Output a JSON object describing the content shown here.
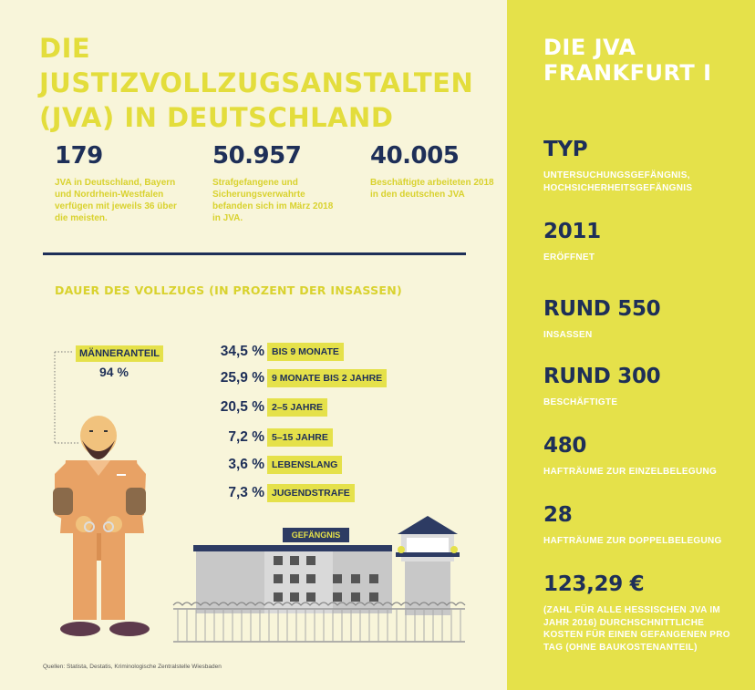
{
  "title": "DIE JUSTIZVOLLZUGSANSTALTEN (JVA) IN DEUTSCHLAND",
  "stats": [
    {
      "value": "179",
      "desc": "JVA in Deutschland, Bayern und Nordrhein-Westfalen verfügen mit jeweils 36 über die meisten."
    },
    {
      "value": "50.957",
      "desc": "Strafgefangene und Sicherungsverwahrte befanden sich im März 2018 in JVA."
    },
    {
      "value": "40.005",
      "desc": "Beschäftigte arbeiteten 2018 in den deutschen JVA"
    }
  ],
  "duration_title": "DAUER DES VOLLZUGS (IN PROZENT DER INSASSEN)",
  "men": {
    "label": "MÄNNERANTEIL",
    "value": "94 %"
  },
  "durations": [
    {
      "pct": "34,5 %",
      "label": "BIS 9 MONATE"
    },
    {
      "pct": "25,9 %",
      "label": "9 MONATE BIS 2 JAHRE"
    },
    {
      "pct": "20,5 %",
      "label": "2–5 JAHRE"
    },
    {
      "pct": "7,2 %",
      "label": "5–15 JAHRE"
    },
    {
      "pct": "3,6 %",
      "label": "LEBENSLANG"
    },
    {
      "pct": "7,3 %",
      "label": "JUGENDSTRAFE"
    }
  ],
  "prison_sign": "GEFÄNGNIS",
  "source": "Quellen: Statista, Destatis, Kriminologische Zentralstelle Wiesbaden",
  "right": {
    "title_line1": "DIE JVA",
    "title_line2": "FRANKFURT I",
    "items": [
      {
        "value": "TYP",
        "label": "UNTERSUCHUNGSGEFÄNGNIS, HOCHSICHERHEITSGEFÄNGNIS"
      },
      {
        "value": "2011",
        "label": "ERÖFFNET"
      },
      {
        "value": "RUND 550",
        "label": "INSASSEN"
      },
      {
        "value": "RUND 300",
        "label": "BESCHÄFTIGTE"
      },
      {
        "value": "480",
        "label": "HAFTRÄUME ZUR EINZELBELEGUNG"
      },
      {
        "value": "28",
        "label": "HAFTRÄUME ZUR DOPPELBELEGUNG"
      },
      {
        "value": "123,29 €",
        "label": "(ZAHL FÜR ALLE HESSISCHEN JVA IM JAHR 2016) DURCHSCHNITTLICHE KOSTEN FÜR EINEN GEFANGENEN PRO TAG (OHNE BAUKOSTENANTEIL)"
      }
    ]
  },
  "colors": {
    "accent": "#e5e14a",
    "navy": "#1e2f58",
    "cream": "#f8f5da",
    "orange": "#e8a265"
  }
}
